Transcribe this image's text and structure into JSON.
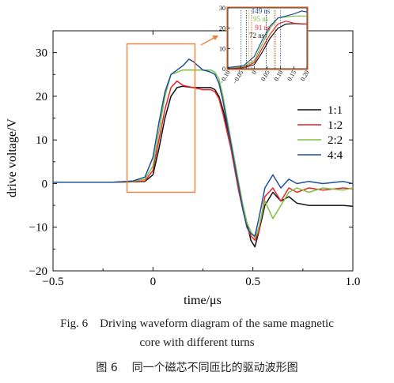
{
  "chart_data": {
    "type": "line",
    "xlabel": "time/μs",
    "ylabel": "drive voltage/V",
    "xlim": [
      -0.5,
      1.0
    ],
    "ylim": [
      -20,
      35
    ],
    "xticks": [
      -0.5,
      0,
      0.5,
      1.0
    ],
    "xtick_labels": [
      "−0.5",
      "0",
      "0.5",
      "1.0"
    ],
    "yticks": [
      -20,
      -10,
      0,
      10,
      20,
      30
    ],
    "ytick_labels": [
      "−20",
      "−10",
      "0",
      "10",
      "20",
      "30"
    ],
    "grid": false,
    "legend_position": "right",
    "colors": {
      "1:1": "#111111",
      "1:2": "#e8222a",
      "2:2": "#7cc242",
      "4:4": "#1f4e9f",
      "highlight": "#f07f3c",
      "text": "#111111"
    },
    "series": [
      {
        "name": "1:1",
        "x": [
          -0.5,
          -0.2,
          -0.1,
          -0.04,
          0.0,
          0.03,
          0.06,
          0.09,
          0.12,
          0.15,
          0.2,
          0.25,
          0.27,
          0.29,
          0.31,
          0.33,
          0.35,
          0.37,
          0.39,
          0.41,
          0.43,
          0.45,
          0.47,
          0.49,
          0.51,
          0.53,
          0.56,
          0.6,
          0.64,
          0.68,
          0.72,
          0.78,
          0.85,
          0.95,
          1.0
        ],
        "y": [
          0.3,
          0.3,
          0.4,
          0.5,
          2,
          8,
          15,
          20,
          22,
          22.3,
          22,
          22,
          22,
          22,
          21.5,
          20,
          17,
          13,
          9,
          4,
          -1,
          -5,
          -9,
          -13,
          -14.5,
          -11,
          -5,
          -2,
          -4,
          -3,
          -4.5,
          -5,
          -5,
          -5,
          -5.2
        ]
      },
      {
        "name": "1:2",
        "x": [
          -0.5,
          -0.2,
          -0.1,
          -0.04,
          0.0,
          0.03,
          0.06,
          0.09,
          0.12,
          0.15,
          0.2,
          0.25,
          0.27,
          0.29,
          0.31,
          0.33,
          0.35,
          0.37,
          0.39,
          0.41,
          0.43,
          0.45,
          0.47,
          0.49,
          0.51,
          0.53,
          0.56,
          0.6,
          0.64,
          0.68,
          0.72,
          0.78,
          0.85,
          0.95,
          1.0
        ],
        "y": [
          0.3,
          0.3,
          0.4,
          0.6,
          3,
          10,
          17,
          22,
          23.5,
          22.5,
          22,
          21.5,
          21.5,
          21.5,
          21,
          19.5,
          16,
          12,
          8,
          3,
          -2,
          -6,
          -10,
          -12,
          -13,
          -11,
          -3,
          -1,
          -4,
          -1,
          -2,
          -1,
          -1.5,
          -1,
          -1.2
        ]
      },
      {
        "name": "2:2",
        "x": [
          -0.5,
          -0.2,
          -0.1,
          -0.04,
          0.0,
          0.03,
          0.06,
          0.09,
          0.12,
          0.15,
          0.2,
          0.25,
          0.27,
          0.29,
          0.31,
          0.33,
          0.35,
          0.37,
          0.39,
          0.41,
          0.43,
          0.45,
          0.47,
          0.49,
          0.51,
          0.53,
          0.56,
          0.6,
          0.64,
          0.68,
          0.72,
          0.78,
          0.85,
          0.95,
          1.0
        ],
        "y": [
          0.3,
          0.3,
          0.5,
          1,
          4,
          12,
          20,
          25,
          25.5,
          26,
          26,
          26,
          26,
          26,
          25.5,
          24,
          20,
          15,
          10,
          5,
          0,
          -5,
          -9,
          -11,
          -12.5,
          -10,
          -4,
          -8,
          -5,
          -2,
          -1,
          -2,
          -1,
          -1.5,
          -1
        ]
      },
      {
        "name": "4:4",
        "x": [
          -0.5,
          -0.2,
          -0.1,
          -0.04,
          0.0,
          0.03,
          0.06,
          0.09,
          0.12,
          0.15,
          0.18,
          0.2,
          0.25,
          0.27,
          0.29,
          0.31,
          0.33,
          0.35,
          0.37,
          0.39,
          0.41,
          0.43,
          0.45,
          0.47,
          0.49,
          0.51,
          0.53,
          0.56,
          0.6,
          0.64,
          0.68,
          0.72,
          0.78,
          0.85,
          0.95,
          1.0
        ],
        "y": [
          0.3,
          0.3,
          0.6,
          1.5,
          6,
          14,
          21,
          25,
          26,
          27,
          28.5,
          28,
          26,
          25.8,
          25.5,
          25,
          23,
          19,
          14,
          9,
          4,
          -1,
          -6,
          -10,
          -11.5,
          -12,
          -8,
          -1,
          2,
          -1,
          1,
          0,
          0.5,
          0,
          0.5,
          0
        ]
      }
    ],
    "highlight_box": {
      "x": [
        -0.13,
        0.21
      ],
      "y": [
        -2,
        32
      ]
    },
    "inset": {
      "xlim": [
        -0.1,
        0.2
      ],
      "ylim": [
        0,
        30
      ],
      "xtick_labels": [
        "−0.10",
        "−0.05",
        "0",
        "0.05",
        "0.10",
        "0.15",
        "0.20"
      ],
      "ytick_labels": [
        "0",
        "10",
        "20",
        "30"
      ],
      "annotations": [
        "149 ns",
        "95 ns",
        "91 ns",
        "72 ns"
      ]
    }
  },
  "caption": {
    "en_line1": "Fig. 6    Driving waveform diagram of the same magnetic",
    "en_line2": "core with different turns",
    "zh": "图 6    同一个磁芯不同匝比的驱动波形图"
  }
}
